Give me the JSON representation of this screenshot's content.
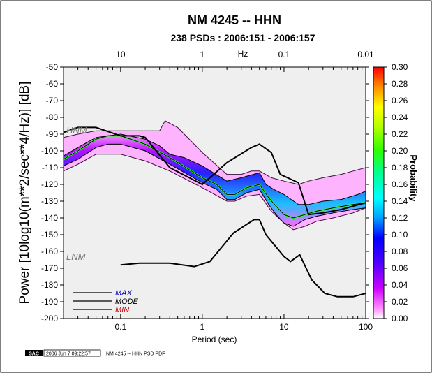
{
  "chart_data": {
    "type": "heatmap",
    "title": "NM 4245 -- HHN",
    "subtitle": "238 PSDs : 2006:151 - 2006:157",
    "xlabel": "Period (sec)",
    "ylabel": "Power [10log10(m**2/sec**4/Hz)] [dB]",
    "top_axis_label": "Hz",
    "x_scale": "log",
    "xlim": [
      0.02,
      100
    ],
    "ylim": [
      -200,
      -50
    ],
    "x_ticks": [
      {
        "value": 0.1,
        "label": "0.1"
      },
      {
        "value": 1,
        "label": "1"
      },
      {
        "value": 10,
        "label": "10"
      },
      {
        "value": 100,
        "label": "100"
      }
    ],
    "top_ticks": [
      {
        "value": 0.1,
        "label": "10"
      },
      {
        "value": 1,
        "label": "1"
      },
      {
        "value": 10,
        "label": "0.1"
      },
      {
        "value": 100,
        "label": "0.01"
      }
    ],
    "y_ticks": [
      -50,
      -60,
      -70,
      -80,
      -90,
      -100,
      -110,
      -120,
      -130,
      -140,
      -150,
      -160,
      -170,
      -180,
      -190,
      -200
    ],
    "colorbar": {
      "label": "Probability",
      "range": [
        0,
        0.3
      ],
      "ticks": [
        "0.00",
        "0.02",
        "0.04",
        "0.06",
        "0.08",
        "0.10",
        "0.12",
        "0.14",
        "0.16",
        "0.18",
        "0.20",
        "0.22",
        "0.24",
        "0.26",
        "0.28",
        "0.30"
      ]
    },
    "model_labels": {
      "high": "HNM",
      "low": "LNM"
    },
    "legend": [
      {
        "name": "MAX",
        "color": "#0000cc"
      },
      {
        "name": "MODE",
        "color": "#000000"
      },
      {
        "name": "MIN",
        "color": "#cc0000"
      }
    ],
    "nhnm": {
      "x": [
        0.02,
        0.03,
        0.05,
        0.1,
        0.17,
        0.2,
        0.4,
        1.0,
        2.0,
        4.0,
        5.0,
        7.0,
        9.0,
        15.0,
        20.0,
        30.0,
        50.0,
        70.0,
        100.0
      ],
      "y": [
        -89,
        -86,
        -86,
        -91,
        -91,
        -92,
        -110,
        -120,
        -107,
        -98,
        -96,
        -101,
        -114,
        -119,
        -138,
        -137,
        -135,
        -133,
        -131
      ]
    },
    "nlnm": {
      "x": [
        0.1,
        0.17,
        0.4,
        0.8,
        1.24,
        2.4,
        4.3,
        5.0,
        6.0,
        10.0,
        12.0,
        15.6,
        21.9,
        31.6,
        45.0,
        70.0,
        100.0
      ],
      "y": [
        -168,
        -167,
        -167,
        -169,
        -166,
        -149,
        -141,
        -141,
        -150,
        -163,
        -166,
        -162,
        -177,
        -185,
        -187,
        -187,
        -185
      ]
    },
    "mode_curve": {
      "x": [
        0.02,
        0.03,
        0.05,
        0.07,
        0.1,
        0.2,
        0.4,
        1.0,
        1.5,
        2.0,
        2.5,
        3.5,
        5.0,
        6.5,
        8.0,
        10.0,
        13.0,
        18.0,
        25.0,
        40.0,
        70.0,
        100.0
      ],
      "y": [
        -105,
        -100,
        -93,
        -91,
        -91,
        -96,
        -104,
        -116,
        -120,
        -126,
        -126,
        -122,
        -120,
        -128,
        -133,
        -138,
        -140,
        -138,
        -136,
        -134,
        -132,
        -131
      ]
    },
    "max_curve": {
      "x": [
        0.02,
        0.03,
        0.05,
        0.1,
        0.2,
        0.3,
        0.4,
        0.6,
        1.0,
        2.0,
        3.0,
        5.0,
        6.0,
        7.5,
        10.0,
        15.0,
        20.0,
        30.0,
        50.0,
        80.0,
        100.0
      ],
      "y": [
        -103,
        -98,
        -92,
        -90,
        -93,
        -97,
        -102,
        -104,
        -109,
        -118,
        -116,
        -113,
        -120,
        -123,
        -126,
        -132,
        -132,
        -130,
        -129,
        -126,
        -124
      ]
    },
    "min_curve": {
      "x": [
        0.02,
        0.03,
        0.05,
        0.07,
        0.1,
        0.2,
        0.4,
        1.0,
        1.5,
        2.0,
        2.5,
        3.5,
        5.0,
        6.5,
        8.0,
        10.0,
        13.0,
        18.0,
        25.0,
        40.0,
        70.0,
        100.0
      ],
      "y": [
        -109,
        -105,
        -98,
        -96,
        -96,
        -100,
        -108,
        -119,
        -123,
        -129,
        -129,
        -125,
        -123,
        -132,
        -138,
        -143,
        -145,
        -141,
        -139,
        -137,
        -135,
        -134
      ]
    },
    "envelope_upper": {
      "x": [
        0.02,
        0.03,
        0.05,
        0.07,
        0.1,
        0.2,
        0.3,
        0.35,
        0.5,
        1.0,
        2.0,
        3.0,
        4.0,
        5.0,
        7.0,
        10.0,
        15.0,
        20.0,
        30.0,
        50.0,
        70.0,
        100.0
      ],
      "y": [
        -92,
        -90,
        -88,
        -88,
        -88,
        -88,
        -88,
        -82,
        -86,
        -101,
        -114,
        -114,
        -112,
        -112,
        -116,
        -118,
        -120,
        -118,
        -116,
        -114,
        -112,
        -110
      ]
    },
    "envelope_lower": {
      "x": [
        0.02,
        0.03,
        0.05,
        0.1,
        0.2,
        0.4,
        1.0,
        2.0,
        2.5,
        3.5,
        5.0,
        7.0,
        10.0,
        13.0,
        18.0,
        25.0,
        40.0,
        70.0,
        100.0
      ],
      "y": [
        -112,
        -108,
        -102,
        -102,
        -106,
        -112,
        -122,
        -130,
        -130,
        -127,
        -126,
        -136,
        -143,
        -147,
        -145,
        -142,
        -140,
        -137,
        -134
      ]
    },
    "footer": {
      "logo": "SAC",
      "timestamp": "2006 Jun  7 09:22:57",
      "caption": "NM 4245 -- HHN PSD PDF"
    }
  }
}
